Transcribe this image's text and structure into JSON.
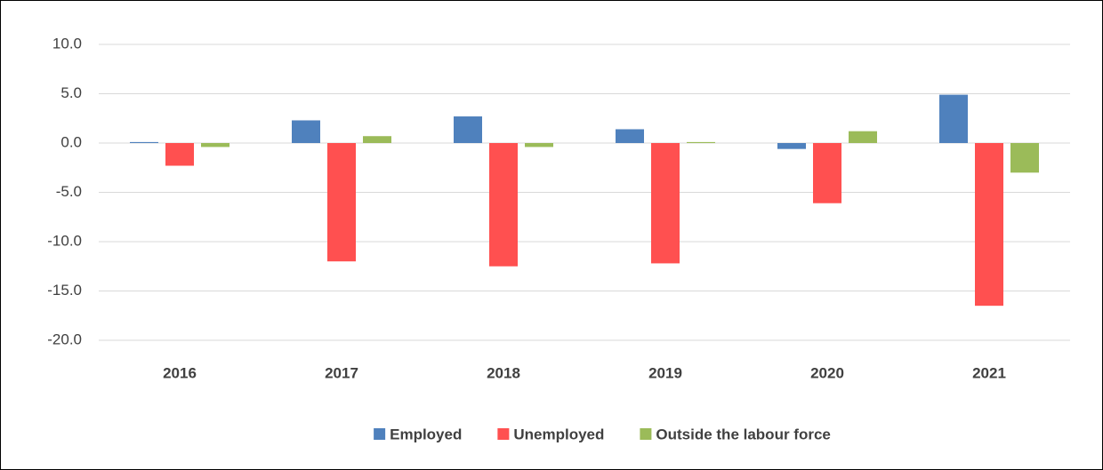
{
  "chart_data": {
    "type": "bar",
    "categories": [
      "2016",
      "2017",
      "2018",
      "2019",
      "2020",
      "2021"
    ],
    "series": [
      {
        "name": "Employed",
        "color": "#4f81bd",
        "values": [
          0.1,
          2.3,
          2.7,
          1.4,
          -0.6,
          4.9
        ]
      },
      {
        "name": "Unemployed",
        "color": "#ff5050",
        "values": [
          -2.3,
          -12.0,
          -12.5,
          -12.2,
          -6.1,
          -16.5
        ]
      },
      {
        "name": "Outside the labour force",
        "color": "#9bbb59",
        "values": [
          -0.4,
          0.7,
          -0.4,
          0.1,
          1.2,
          -3.0
        ]
      }
    ],
    "ylim": [
      -20,
      10
    ],
    "yticks": [
      {
        "value": -20,
        "label": "-20.0"
      },
      {
        "value": -15,
        "label": "-15.0"
      },
      {
        "value": -10,
        "label": "-10.0"
      },
      {
        "value": -5,
        "label": "-5.0"
      },
      {
        "value": 0,
        "label": "0.0"
      },
      {
        "value": 5,
        "label": "5.0"
      },
      {
        "value": 10,
        "label": "10.0"
      }
    ],
    "grid": true,
    "legend": "bottom"
  }
}
